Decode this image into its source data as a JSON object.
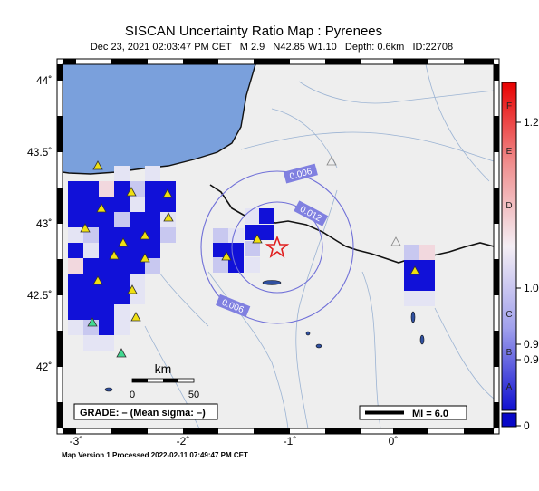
{
  "header": {
    "title": "SISCAN Uncertainty Ratio Map : Pyrenees",
    "subtitle": "Dec 23, 2021 02:03:47 PM CET   M 2.9   N42.85 W1.10   Depth: 0.6km   ID:22708"
  },
  "axes": {
    "lat_ticks": [
      "44˚",
      "43.5˚",
      "43˚",
      "42.5˚",
      "42˚"
    ],
    "lon_ticks": [
      "-3˚",
      "-2˚",
      "-1˚",
      "0˚"
    ]
  },
  "contours": {
    "labels": [
      "0.006",
      "0.012",
      "0.006"
    ]
  },
  "scale": {
    "unit": "km",
    "ticks": [
      "0",
      "50"
    ]
  },
  "grade": {
    "text": "GRADE: – (Mean sigma: –)"
  },
  "mi_legend": {
    "text": "MI = 6.0"
  },
  "colorbar": {
    "letters": [
      "F",
      "E",
      "D",
      "C",
      "B",
      "A"
    ],
    "values": [
      "1.2",
      "1.0",
      "0.9",
      "0.9",
      "0"
    ]
  },
  "footer": {
    "note": "Map Version 1 Processed 2022-02-11 07:49:47 PM CET"
  },
  "colors": {
    "sea": "#7aa0dc",
    "land": "#eeeeee",
    "cell_dark": "#1111d8",
    "cell_pale": "#c8c8f0",
    "station": "#f0e010",
    "epicenter": "#e02020"
  },
  "legend_icons": [
    "star-icon",
    "station-triangle-icon"
  ]
}
